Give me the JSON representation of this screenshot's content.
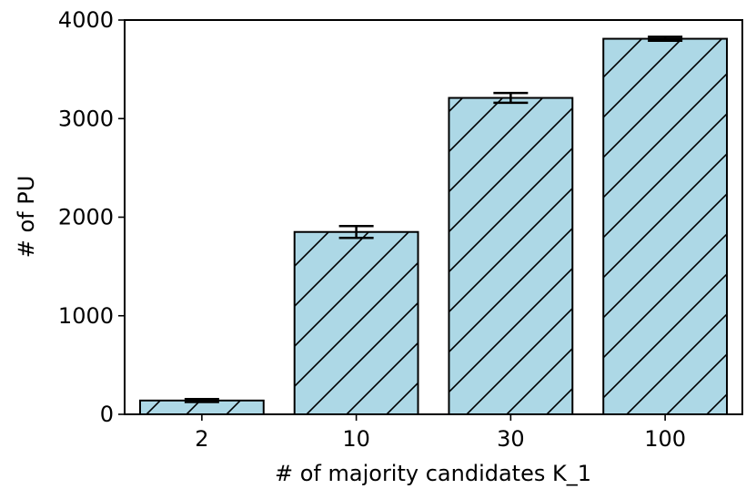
{
  "chart_data": {
    "type": "bar",
    "categories": [
      "2",
      "10",
      "30",
      "100"
    ],
    "values": [
      140,
      1850,
      3210,
      3810
    ],
    "errors": [
      15,
      60,
      50,
      20
    ],
    "xlabel": "# of majority candidates K_1",
    "ylabel": "# of PU",
    "ylim": [
      0,
      4000
    ],
    "yticks": [
      0,
      1000,
      2000,
      3000,
      4000
    ],
    "bar_color": "#add8e6",
    "edge_color": "#000000",
    "hatch": "diagonal",
    "grid": false
  }
}
